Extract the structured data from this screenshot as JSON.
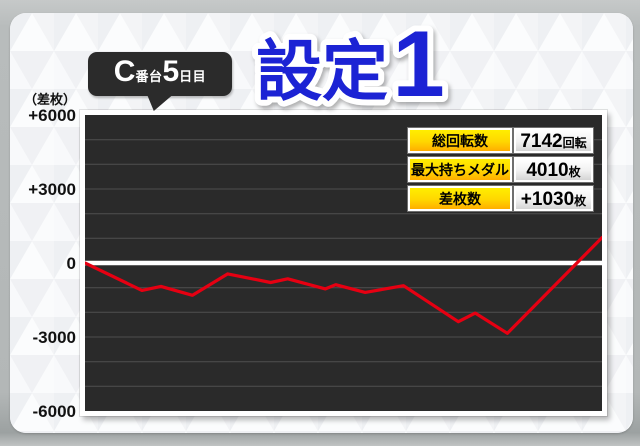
{
  "title": {
    "main": "設定",
    "number": "1"
  },
  "machine_label": {
    "c": "C",
    "unit1": "番台",
    "num": "5",
    "unit2": "日目"
  },
  "y_axis": {
    "unit_label": "（差枚）",
    "ticks": [
      "+6000",
      "+3000",
      "0",
      "-3000",
      "-6000"
    ]
  },
  "stats": {
    "rows": [
      {
        "label": "総回転数",
        "value": "7142",
        "unit": "回転"
      },
      {
        "label": "最大持ちメダル",
        "value": "4010",
        "unit": "枚"
      },
      {
        "label": "差枚数",
        "value": "+1030",
        "unit": "枚"
      }
    ]
  },
  "colors": {
    "accent_blue": "#1c23d4",
    "line_red": "#e60012",
    "plot_bg": "#2a2a2a",
    "grid": "#4f4f4f",
    "zero_line": "#ffffff",
    "label_yellow_top": "#ffee00",
    "label_yellow_bottom": "#ffae00",
    "bubble_bg": "#2b2b2b"
  },
  "chart_data": {
    "type": "line",
    "title": "設定1",
    "ylabel": "差枚",
    "ylim": [
      -6000,
      6000
    ],
    "grid_step": 1000,
    "legend": "none",
    "x_axis_labels": "none",
    "line_color": "#e60012",
    "final_value": 1030,
    "points": [
      [
        0.0,
        0
      ],
      [
        0.11,
        -1110
      ],
      [
        0.147,
        -950
      ],
      [
        0.208,
        -1310
      ],
      [
        0.276,
        -440
      ],
      [
        0.359,
        -790
      ],
      [
        0.392,
        -640
      ],
      [
        0.465,
        -1050
      ],
      [
        0.485,
        -880
      ],
      [
        0.542,
        -1190
      ],
      [
        0.616,
        -920
      ],
      [
        0.722,
        -2380
      ],
      [
        0.755,
        -2030
      ],
      [
        0.817,
        -2850
      ],
      [
        1.0,
        1030
      ]
    ]
  }
}
